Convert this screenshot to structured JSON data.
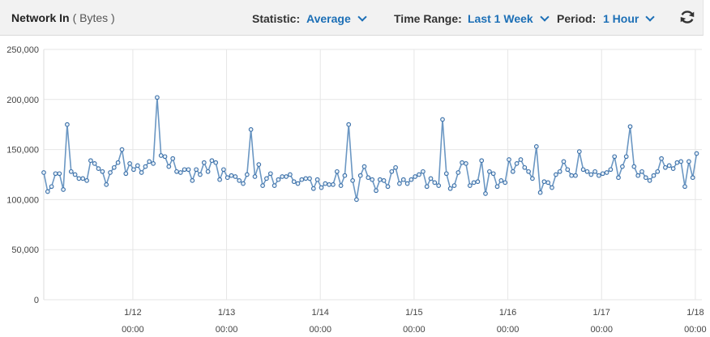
{
  "header": {
    "title": "Network In",
    "unit": "( Bytes )",
    "statistic_label": "Statistic:",
    "statistic_value": "Average",
    "time_range_label": "Time Range:",
    "time_range_value": "Last 1 Week",
    "period_label": "Period:",
    "period_value": "1 Hour",
    "refresh_icon": "refresh-icon"
  },
  "colors": {
    "line": "#6b97c3",
    "marker_stroke": "#3a6fa8",
    "grid": "#e6e6e6",
    "accent": "#1c6fb6"
  },
  "chart_data": {
    "type": "line",
    "ylim": [
      0,
      250000
    ],
    "yticks": [
      0,
      50000,
      100000,
      150000,
      200000,
      250000
    ],
    "ytick_labels": [
      "0",
      "50,000",
      "100,000",
      "150,000",
      "200,000",
      "250,000"
    ],
    "x_start": 0.05,
    "x_end": 7.07,
    "xticks": [
      1,
      2,
      3,
      4,
      5,
      6,
      7
    ],
    "xtick_dates": [
      "1/12",
      "1/13",
      "1/14",
      "1/15",
      "1/16",
      "1/17",
      "1/18"
    ],
    "xtick_times": [
      "00:00",
      "00:00",
      "00:00",
      "00:00",
      "00:00",
      "00:00",
      "00:00"
    ],
    "grid": true,
    "series": [
      {
        "x_start": 0.05,
        "x_step": 0.0417,
        "values": [
          127000,
          108000,
          113000,
          126000,
          126000,
          110000,
          175000,
          128000,
          125000,
          121000,
          121000,
          119000,
          139000,
          136000,
          131000,
          128000,
          115000,
          127000,
          132000,
          137000,
          150000,
          126000,
          136000,
          130000,
          134000,
          127000,
          133000,
          138000,
          136000,
          202000,
          144000,
          143000,
          133000,
          141000,
          128000,
          127000,
          130000,
          130000,
          119000,
          130000,
          125000,
          137000,
          128000,
          139000,
          137000,
          120000,
          130000,
          122000,
          124000,
          123000,
          119000,
          116000,
          125000,
          170000,
          123000,
          135000,
          114000,
          121000,
          126000,
          114000,
          120000,
          123000,
          123000,
          125000,
          118000,
          116000,
          120000,
          121000,
          121000,
          111000,
          120000,
          112000,
          116000,
          115000,
          115000,
          128000,
          114000,
          124000,
          175000,
          119000,
          100000,
          124000,
          133000,
          122000,
          120000,
          109000,
          120000,
          119000,
          113000,
          128000,
          132000,
          116000,
          120000,
          116000,
          120000,
          123000,
          125000,
          128000,
          113000,
          121000,
          117000,
          114000,
          180000,
          126000,
          111000,
          114000,
          127000,
          137000,
          136000,
          114000,
          117000,
          118000,
          139000,
          106000,
          128000,
          126000,
          113000,
          119000,
          117000,
          140000,
          128000,
          136000,
          140000,
          132000,
          128000,
          121000,
          153000,
          107000,
          118000,
          117000,
          112000,
          125000,
          128000,
          138000,
          130000,
          124000,
          124000,
          148000,
          130000,
          128000,
          125000,
          128000,
          124000,
          126000,
          127000,
          130000,
          143000,
          122000,
          133000,
          143000,
          173000,
          133000,
          124000,
          128000,
          122000,
          119000,
          124000,
          128000,
          141000,
          132000,
          134000,
          131000,
          137000,
          138000,
          113000,
          138000,
          122000,
          146000
        ]
      }
    ]
  }
}
